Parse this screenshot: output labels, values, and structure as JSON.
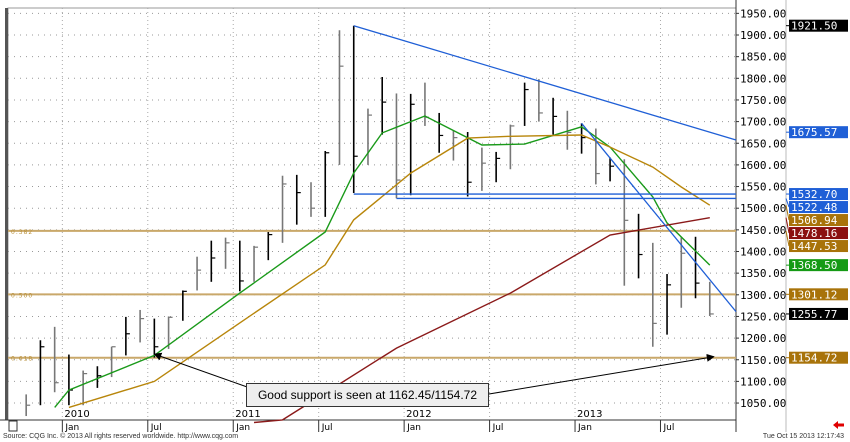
{
  "chart_data": {
    "type": "bar",
    "bar_style": "high-low-close",
    "price_axis": {
      "min": 1050,
      "max": 1950,
      "step": 50,
      "side": "right"
    },
    "x_ticks": [
      "Jan",
      "Jul",
      "Jan",
      "Jul",
      "Jan",
      "Jul",
      "Jan",
      "Jul"
    ],
    "year_labels": [
      "2010",
      "2011",
      "2012",
      "2013"
    ],
    "grid": true,
    "bars": [
      [
        "2009-10",
        1070,
        1020,
        1045
      ],
      [
        "2009-11",
        1195,
        1045,
        1180
      ],
      [
        "2009-12",
        1226,
        1075,
        1097
      ],
      [
        "2010-01",
        1162,
        1045,
        1080
      ],
      [
        "2010-02",
        1125,
        1045,
        1118
      ],
      [
        "2010-03",
        1135,
        1085,
        1113
      ],
      [
        "2010-04",
        1180,
        1110,
        1180
      ],
      [
        "2010-05",
        1249,
        1160,
        1210
      ],
      [
        "2010-06",
        1265,
        1190,
        1245
      ],
      [
        "2010-07",
        1245,
        1155,
        1180
      ],
      [
        "2010-08",
        1250,
        1175,
        1248
      ],
      [
        "2010-09",
        1310,
        1240,
        1308
      ],
      [
        "2010-10",
        1388,
        1310,
        1357
      ],
      [
        "2010-11",
        1425,
        1330,
        1385
      ],
      [
        "2010-12",
        1432,
        1360,
        1420
      ],
      [
        "2011-01",
        1425,
        1308,
        1332
      ],
      [
        "2011-02",
        1413,
        1330,
        1410
      ],
      [
        "2011-03",
        1445,
        1380,
        1439
      ],
      [
        "2011-04",
        1575,
        1420,
        1556
      ],
      [
        "2011-05",
        1577,
        1462,
        1536
      ],
      [
        "2011-06",
        1560,
        1480,
        1500
      ],
      [
        "2011-07",
        1632,
        1480,
        1628
      ],
      [
        "2011-08",
        1911,
        1600,
        1828
      ],
      [
        "2011-09",
        1921.5,
        1535,
        1620
      ],
      [
        "2011-10",
        1730,
        1600,
        1715
      ],
      [
        "2011-11",
        1803,
        1670,
        1745
      ],
      [
        "2011-12",
        1765,
        1523,
        1565
      ],
      [
        "2012-01",
        1764,
        1530,
        1740
      ],
      [
        "2012-02",
        1790,
        1690,
        1710
      ],
      [
        "2012-03",
        1720,
        1628,
        1668
      ],
      [
        "2012-04",
        1680,
        1610,
        1663
      ],
      [
        "2012-05",
        1676,
        1527,
        1560
      ],
      [
        "2012-06",
        1640,
        1540,
        1604
      ],
      [
        "2012-07",
        1630,
        1560,
        1615
      ],
      [
        "2012-08",
        1693,
        1590,
        1690
      ],
      [
        "2012-09",
        1790,
        1690,
        1774
      ],
      [
        "2012-10",
        1798,
        1700,
        1720
      ],
      [
        "2012-11",
        1755,
        1670,
        1712
      ],
      [
        "2012-12",
        1725,
        1635,
        1675
      ],
      [
        "2013-01",
        1696,
        1626,
        1663
      ],
      [
        "2013-02",
        1684,
        1555,
        1580
      ],
      [
        "2013-03",
        1617,
        1562,
        1597
      ],
      [
        "2013-04",
        1613,
        1321,
        1472
      ],
      [
        "2013-05",
        1487,
        1338,
        1393
      ],
      [
        "2013-06",
        1420,
        1180,
        1234
      ],
      [
        "2013-07",
        1348,
        1208,
        1323
      ],
      [
        "2013-08",
        1433,
        1270,
        1396
      ],
      [
        "2013-09",
        1434,
        1292,
        1327
      ],
      [
        "2013-10",
        1330,
        1251,
        1255.77
      ]
    ],
    "moving_averages": [
      {
        "color": "#1a9a1a",
        "last": 1368.5,
        "points": [
          [
            "2009-12",
            1040
          ],
          [
            "2010-01",
            1080
          ],
          [
            "2010-07",
            1160
          ],
          [
            "2011-01",
            1304
          ],
          [
            "2011-07",
            1445
          ],
          [
            "2011-09",
            1581
          ],
          [
            "2011-11",
            1674
          ],
          [
            "2012-02",
            1713
          ],
          [
            "2012-06",
            1646
          ],
          [
            "2012-09",
            1648
          ],
          [
            "2013-01",
            1688
          ],
          [
            "2013-03",
            1641
          ],
          [
            "2013-06",
            1526
          ],
          [
            "2013-07",
            1466
          ],
          [
            "2013-10",
            1368.5
          ]
        ]
      },
      {
        "color": "#b8860b",
        "last": 1506.94,
        "points": [
          [
            "2010-01",
            1040
          ],
          [
            "2010-07",
            1100
          ],
          [
            "2011-01",
            1235
          ],
          [
            "2011-07",
            1369
          ],
          [
            "2011-09",
            1473
          ],
          [
            "2012-01",
            1581
          ],
          [
            "2012-05",
            1662
          ],
          [
            "2012-08",
            1666
          ],
          [
            "2013-01",
            1669
          ],
          [
            "2013-03",
            1641
          ],
          [
            "2013-06",
            1595
          ],
          [
            "2013-08",
            1549
          ],
          [
            "2013-10",
            1506.94
          ]
        ]
      },
      {
        "color": "#8b1a1a",
        "last": 1478.16,
        "points": [
          [
            "2011-02",
            1005
          ],
          [
            "2011-04",
            1011
          ],
          [
            "2011-12",
            1177
          ],
          [
            "2012-08",
            1304
          ],
          [
            "2013-03",
            1438
          ],
          [
            "2013-10",
            1478.16
          ]
        ]
      }
    ],
    "trendlines": [
      {
        "color": "#1f5fd6",
        "from": [
          "2011-09",
          1921.5
        ],
        "to": [
          "2013-10",
          1675.57
        ],
        "extend": true
      },
      {
        "color": "#1f5fd6",
        "from": [
          "2013-01",
          1696
        ],
        "to": [
          "2013-10",
          1335
        ],
        "extend": true
      },
      {
        "color": "#1f5fd6",
        "horizontal": 1532.7,
        "from_date": "2011-09"
      },
      {
        "color": "#1f5fd6",
        "horizontal": 1522.48,
        "from_date": "2011-12"
      }
    ],
    "fib_levels": [
      {
        "ratio": "0.382",
        "price": 1447.53
      },
      {
        "ratio": "0.500",
        "price": 1301.12
      },
      {
        "ratio": "0.618",
        "price": 1154.72
      }
    ],
    "price_tags": [
      {
        "value": "1921.50",
        "bg": "#000000",
        "price": 1921.5
      },
      {
        "value": "1675.57",
        "bg": "#1f5fd6",
        "price": 1675.57
      },
      {
        "value": "1532.70",
        "bg": "#1f5fd6",
        "price": 1532.7
      },
      {
        "value": "1522.48",
        "bg": "#1f5fd6",
        "price": 1522.48
      },
      {
        "value": "1506.94",
        "bg": "#a8730a",
        "price": 1506.94
      },
      {
        "value": "1478.16",
        "bg": "#8b1010",
        "price": 1478.16
      },
      {
        "value": "1447.53",
        "bg": "#a8730a",
        "price": 1447.53
      },
      {
        "value": "1368.50",
        "bg": "#159a15",
        "price": 1368.5
      },
      {
        "value": "1301.12",
        "bg": "#a8730a",
        "price": 1301.12
      },
      {
        "value": "1255.77",
        "bg": "#000000",
        "price": 1255.77
      },
      {
        "value": "1154.72",
        "bg": "#a8730a",
        "price": 1154.72
      }
    ],
    "annotation": {
      "text": "Good support is seen at 1162.45/1154.72",
      "targets": [
        [
          "2010-07",
          1163
        ],
        [
          "2013-10",
          1157
        ]
      ]
    }
  },
  "footer": {
    "source": "Source: CQG Inc. © 2013 All rights reserved worldwide. http://www.cqg.com",
    "timestamp": "Tue Oct 15 2013 12:17:43"
  }
}
